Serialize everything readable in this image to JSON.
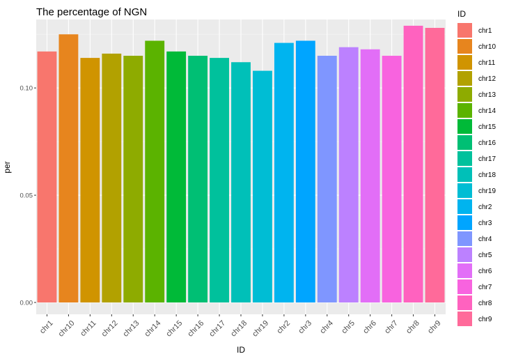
{
  "chart_data": {
    "type": "bar",
    "title": "The percentage of NGN",
    "xlabel": "ID",
    "ylabel": "per",
    "ylim": [
      0,
      0.128
    ],
    "yticks": [
      "0.00",
      "0.05",
      "0.10"
    ],
    "ytick_values": [
      0,
      0.05,
      0.1
    ],
    "grid": true,
    "legend_title": "ID",
    "legend_position": "right",
    "categories": [
      "chr1",
      "chr10",
      "chr11",
      "chr12",
      "chr13",
      "chr14",
      "chr15",
      "chr16",
      "chr17",
      "chr18",
      "chr19",
      "chr2",
      "chr3",
      "chr4",
      "chr5",
      "chr6",
      "chr7",
      "chr8",
      "chr9"
    ],
    "values": [
      0.117,
      0.125,
      0.114,
      0.116,
      0.115,
      0.122,
      0.117,
      0.115,
      0.114,
      0.112,
      0.108,
      0.121,
      0.122,
      0.115,
      0.119,
      0.118,
      0.115,
      0.129,
      0.128
    ],
    "colors": [
      "#F8766D",
      "#E7851E",
      "#D09400",
      "#B2A100",
      "#8EAB00",
      "#5BB300",
      "#00BA38",
      "#00BF74",
      "#00C19C",
      "#00C0B8",
      "#00BDD4",
      "#00B4EF",
      "#00A5FF",
      "#7F96FF",
      "#BC81FF",
      "#E26EF7",
      "#F863DF",
      "#FF62BF",
      "#FF6A9A"
    ]
  }
}
